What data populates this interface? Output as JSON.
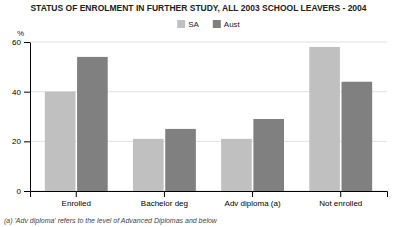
{
  "chart_data": {
    "type": "bar",
    "title": "STATUS OF ENROLMENT IN FURTHER STUDY, ALL 2003 SCHOOL LEAVERS - 2004",
    "categories": [
      "Enrolled",
      "Bachelor deg",
      "Adv diploma (a)",
      "Not enrolled"
    ],
    "series": [
      {
        "name": "SA",
        "color": "#c0c0c0",
        "values": [
          40,
          21,
          21,
          58
        ]
      },
      {
        "name": "Aust",
        "color": "#808080",
        "values": [
          54,
          25,
          29,
          44
        ]
      }
    ],
    "ylabel": "%",
    "ylim": [
      0,
      60
    ],
    "yticks": [
      0,
      20,
      40,
      60
    ],
    "grid": true,
    "legend": "top",
    "annotations": [
      "(a) 'Adv diploma' refers to the level of Advanced Diplomas and below"
    ]
  }
}
